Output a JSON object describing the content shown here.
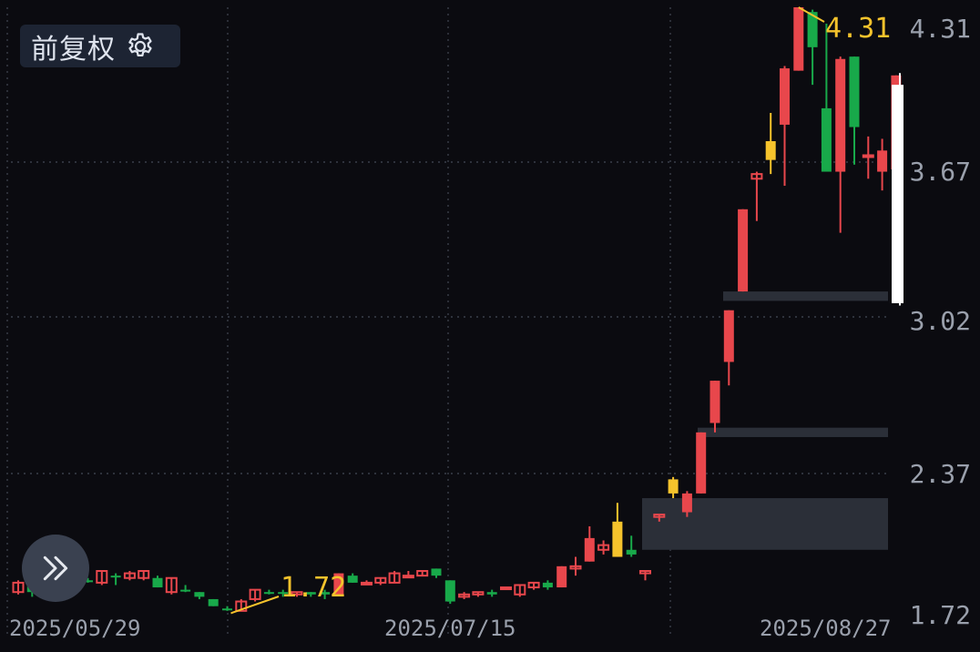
{
  "toolbar": {
    "adjust_label": "前复权",
    "settings_icon": "gear-icon",
    "expand_icon": "double-chevron-right-icon"
  },
  "colors": {
    "up": "#e8474c",
    "down": "#18a94a",
    "highlight": "#f5c32c",
    "grid": "#3a3f4a",
    "background": "#0b0b10"
  },
  "chart_data": {
    "type": "candlestick",
    "y_ticks": [
      "4.31",
      "3.67",
      "3.02",
      "2.37",
      "1.72"
    ],
    "x_ticks": [
      "2025/05/29",
      "2025/07/15",
      "2025/08/27"
    ],
    "ylim": [
      1.72,
      4.31
    ],
    "annotations": {
      "high": "4.31",
      "low": "1.72"
    },
    "candles": [
      [
        1.86,
        1.82,
        1.87,
        1.81,
        "u"
      ],
      [
        1.82,
        1.86,
        1.92,
        1.8,
        "d"
      ],
      [
        1.82,
        1.85,
        1.86,
        1.81,
        "u"
      ],
      [
        1.85,
        1.86,
        1.87,
        1.84,
        "u"
      ],
      [
        1.85,
        1.88,
        1.89,
        1.84,
        "u"
      ],
      [
        1.87,
        1.87,
        1.88,
        1.86,
        "d"
      ],
      [
        1.86,
        1.91,
        1.91,
        1.85,
        "u"
      ],
      [
        1.89,
        1.89,
        1.9,
        1.85,
        "d"
      ],
      [
        1.88,
        1.9,
        1.91,
        1.87,
        "u"
      ],
      [
        1.88,
        1.91,
        1.91,
        1.87,
        "u"
      ],
      [
        1.88,
        1.84,
        1.89,
        1.84,
        "d"
      ],
      [
        1.82,
        1.88,
        1.88,
        1.81,
        "u"
      ],
      [
        1.83,
        1.83,
        1.85,
        1.82,
        "d"
      ],
      [
        1.82,
        1.8,
        1.82,
        1.79,
        "d"
      ],
      [
        1.79,
        1.76,
        1.79,
        1.76,
        "d"
      ],
      [
        1.75,
        1.75,
        1.76,
        1.74,
        "d"
      ],
      [
        1.74,
        1.78,
        1.79,
        1.74,
        "u"
      ],
      [
        1.79,
        1.83,
        1.83,
        1.78,
        "u"
      ],
      [
        1.82,
        1.82,
        1.83,
        1.81,
        "d"
      ],
      [
        1.82,
        1.82,
        1.83,
        1.8,
        "d"
      ],
      [
        1.81,
        1.82,
        1.82,
        1.8,
        "u"
      ],
      [
        1.82,
        1.81,
        1.82,
        1.8,
        "d"
      ],
      [
        1.82,
        1.81,
        1.83,
        1.79,
        "d"
      ],
      [
        1.81,
        1.9,
        1.9,
        1.81,
        "u"
      ],
      [
        1.89,
        1.86,
        1.9,
        1.86,
        "d"
      ],
      [
        1.86,
        1.86,
        1.87,
        1.85,
        "u"
      ],
      [
        1.86,
        1.88,
        1.88,
        1.85,
        "u"
      ],
      [
        1.86,
        1.9,
        1.91,
        1.86,
        "u"
      ],
      [
        1.89,
        1.89,
        1.91,
        1.88,
        "u"
      ],
      [
        1.89,
        1.91,
        1.91,
        1.89,
        "u"
      ],
      [
        1.92,
        1.89,
        1.92,
        1.88,
        "d"
      ],
      [
        1.87,
        1.78,
        1.87,
        1.77,
        "d"
      ],
      [
        1.8,
        1.81,
        1.82,
        1.79,
        "u"
      ],
      [
        1.81,
        1.82,
        1.82,
        1.8,
        "u"
      ],
      [
        1.82,
        1.81,
        1.83,
        1.8,
        "d"
      ],
      [
        1.84,
        1.84,
        1.84,
        1.83,
        "u"
      ],
      [
        1.81,
        1.85,
        1.85,
        1.8,
        "u"
      ],
      [
        1.84,
        1.86,
        1.86,
        1.83,
        "u"
      ],
      [
        1.86,
        1.84,
        1.87,
        1.83,
        "d"
      ],
      [
        1.84,
        1.93,
        1.93,
        1.84,
        "u"
      ],
      [
        1.92,
        1.93,
        1.97,
        1.89,
        "u"
      ],
      [
        1.95,
        2.05,
        2.1,
        1.95,
        "u"
      ],
      [
        2.0,
        2.02,
        2.04,
        1.98,
        "u"
      ],
      [
        2.12,
        1.97,
        2.2,
        1.97,
        "y"
      ],
      [
        2.0,
        1.98,
        2.06,
        1.97,
        "d"
      ],
      [
        1.9,
        1.91,
        1.91,
        1.87,
        "u"
      ],
      [
        2.14,
        2.15,
        2.15,
        2.12,
        "u"
      ],
      [
        2.3,
        2.24,
        2.31,
        2.22,
        "y"
      ],
      [
        2.16,
        2.24,
        2.25,
        2.14,
        "u"
      ],
      [
        2.24,
        2.5,
        2.5,
        2.24,
        "u"
      ],
      [
        2.54,
        2.72,
        2.72,
        2.5,
        "u"
      ],
      [
        2.8,
        3.02,
        3.02,
        2.7,
        "u"
      ],
      [
        3.1,
        3.45,
        3.45,
        3.1,
        "u"
      ],
      [
        3.58,
        3.6,
        3.61,
        3.4,
        "u"
      ],
      [
        3.74,
        3.66,
        3.86,
        3.6,
        "y"
      ],
      [
        3.81,
        4.05,
        4.06,
        3.55,
        "u"
      ],
      [
        4.04,
        4.31,
        4.31,
        4.04,
        "u"
      ],
      [
        4.29,
        4.14,
        4.3,
        3.98,
        "d"
      ],
      [
        3.88,
        3.61,
        4.24,
        3.61,
        "d"
      ],
      [
        3.61,
        4.09,
        4.1,
        3.35,
        "u"
      ],
      [
        4.1,
        3.8,
        4.1,
        3.64,
        "d"
      ],
      [
        3.68,
        3.68,
        3.76,
        3.58,
        "u"
      ],
      [
        3.61,
        3.7,
        3.75,
        3.53,
        "u"
      ],
      [
        3.62,
        4.02,
        4.02,
        3.6,
        "u"
      ]
    ]
  }
}
